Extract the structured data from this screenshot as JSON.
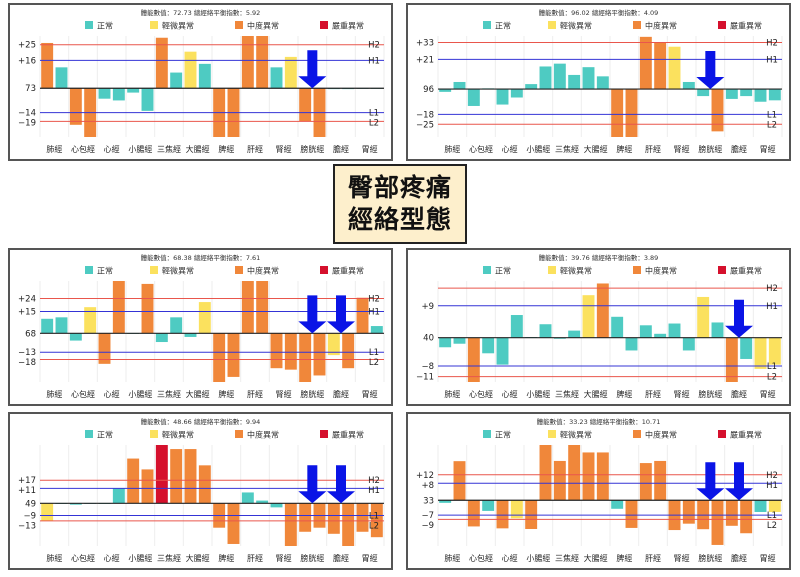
{
  "title": {
    "line1": "臀部疼痛",
    "line2": "經絡型態"
  },
  "legend": [
    {
      "label": "正常",
      "color": "#4ecbc2"
    },
    {
      "label": "輕微異常",
      "color": "#fbe15e"
    },
    {
      "label": "中度異常",
      "color": "#f0873a"
    },
    {
      "label": "嚴重異常",
      "color": "#d5102d"
    }
  ],
  "line_colors": {
    "H2": "#e9564c",
    "H1": "#3434d6",
    "L1": "#3434d6",
    "L2": "#e9564c",
    "baseline": "#222222",
    "arrow": "#0a14e6"
  },
  "meridians": [
    "肺經",
    "心包經",
    "心經",
    "小腸經",
    "三焦經",
    "大腸經",
    "脾經",
    "肝經",
    "腎經",
    "膀胱經",
    "膽經",
    "胃經"
  ],
  "chart_data": [
    {
      "type": "bar",
      "header": "體能數值：72.73 總經絡平衡指數：5.92",
      "baseline_label": "73",
      "lines": {
        "H2": {
          "value": 25,
          "tick": "+25"
        },
        "H1": {
          "value": 16,
          "tick": "+16"
        },
        "L1": {
          "value": -14,
          "tick": "−14"
        },
        "L2": {
          "value": -19,
          "tick": "−19"
        }
      },
      "ylim": [
        -28,
        30
      ],
      "arrows": [
        9
      ],
      "values": [
        [
          26,
          2
        ],
        [
          12,
          0
        ],
        [
          -21,
          2
        ],
        [
          -28,
          2
        ],
        [
          -6,
          0
        ],
        [
          -7,
          0
        ],
        [
          -2.5,
          0
        ],
        [
          -13,
          0
        ],
        [
          29,
          2
        ],
        [
          9,
          0
        ],
        [
          21,
          1
        ],
        [
          14,
          0
        ],
        [
          -28,
          2
        ],
        [
          -28,
          2
        ],
        [
          30,
          2
        ],
        [
          30,
          2
        ],
        [
          12,
          0
        ],
        [
          18,
          1
        ],
        [
          -19,
          2
        ],
        [
          -28,
          2
        ],
        [
          -0.5,
          0
        ],
        [
          -0.5,
          0
        ],
        [
          0,
          0
        ],
        [
          0,
          0
        ]
      ]
    },
    {
      "type": "bar",
      "header": "體能數值：96.02 總經絡平衡指數：4.09",
      "baseline_label": "96",
      "lines": {
        "H2": {
          "value": 33,
          "tick": "+33"
        },
        "H1": {
          "value": 21,
          "tick": "+21"
        },
        "L1": {
          "value": -18,
          "tick": "−18"
        },
        "L2": {
          "value": -25,
          "tick": "−25"
        }
      },
      "ylim": [
        -34,
        37.6
      ],
      "arrows": [
        9
      ],
      "values": [
        [
          -2,
          0
        ],
        [
          5,
          0
        ],
        [
          -12,
          0
        ],
        [
          0.5,
          0
        ],
        [
          -11,
          0
        ],
        [
          -6,
          0
        ],
        [
          3.5,
          0
        ],
        [
          16,
          0
        ],
        [
          18,
          0
        ],
        [
          10,
          0
        ],
        [
          15.5,
          0
        ],
        [
          9,
          0
        ],
        [
          -34,
          2
        ],
        [
          -34,
          2
        ],
        [
          37,
          2
        ],
        [
          33,
          2
        ],
        [
          30,
          1
        ],
        [
          5,
          0
        ],
        [
          -5,
          0
        ],
        [
          -30,
          2
        ],
        [
          -7,
          0
        ],
        [
          -5,
          0
        ],
        [
          -9,
          0
        ],
        [
          -8,
          0
        ]
      ]
    },
    {
      "type": "bar",
      "header": "體能數值：68.38 總經絡平衡指數：7.61",
      "baseline_label": "68",
      "lines": {
        "H2": {
          "value": 24,
          "tick": "+24"
        },
        "H1": {
          "value": 15,
          "tick": "+15"
        },
        "L1": {
          "value": -13,
          "tick": "−13"
        },
        "L2": {
          "value": -18,
          "tick": "−18"
        }
      },
      "ylim": [
        -33.5,
        36
      ],
      "arrows": [
        9,
        10
      ],
      "values": [
        [
          10,
          0
        ],
        [
          11,
          0
        ],
        [
          -5,
          0
        ],
        [
          18,
          1
        ],
        [
          -21,
          2
        ],
        [
          36,
          2
        ],
        [
          0,
          0
        ],
        [
          34,
          2
        ],
        [
          -6,
          0
        ],
        [
          11,
          0
        ],
        [
          -2.5,
          0
        ],
        [
          21.5,
          1
        ],
        [
          -33.5,
          2
        ],
        [
          -30,
          2
        ],
        [
          36,
          2
        ],
        [
          36,
          2
        ],
        [
          -24,
          2
        ],
        [
          -25,
          2
        ],
        [
          -33.5,
          2
        ],
        [
          -29,
          2
        ],
        [
          -15,
          1
        ],
        [
          -24,
          2
        ],
        [
          24.5,
          2
        ],
        [
          5,
          0
        ]
      ]
    },
    {
      "type": "bar",
      "header": "體能數值：39.76 總經絡平衡指數：3.89",
      "baseline_label": "40",
      "lines": {
        "H2": {
          "value": 14,
          "tick": ""
        },
        "H1": {
          "value": 9,
          "tick": "+9"
        },
        "L1": {
          "value": -8,
          "tick": "−8"
        },
        "L2": {
          "value": -11,
          "tick": "−11"
        }
      },
      "ylim": [
        -12.5,
        16
      ],
      "arrows": [
        10
      ],
      "values": [
        [
          -2.7,
          0
        ],
        [
          -1.7,
          0
        ],
        [
          -12.5,
          2
        ],
        [
          -4.4,
          0
        ],
        [
          -7.6,
          0
        ],
        [
          6.4,
          0
        ],
        [
          0.2,
          0
        ],
        [
          3.8,
          0
        ],
        [
          -0.3,
          0
        ],
        [
          2,
          0
        ],
        [
          12,
          1
        ],
        [
          15.3,
          2
        ],
        [
          5.9,
          0
        ],
        [
          -3.6,
          0
        ],
        [
          3.5,
          0
        ],
        [
          1.1,
          0
        ],
        [
          4,
          0
        ],
        [
          -3.6,
          0
        ],
        [
          11.5,
          1
        ],
        [
          4.3,
          0
        ],
        [
          -12.5,
          2
        ],
        [
          -6,
          0
        ],
        [
          -8.8,
          1
        ],
        [
          -7.6,
          1
        ]
      ]
    },
    {
      "type": "bar",
      "header": "體能數值：48.66 總經絡平衡指數：9.94",
      "baseline_label": "49",
      "lines": {
        "H2": {
          "value": 17,
          "tick": "+17"
        },
        "H1": {
          "value": 11,
          "tick": "+11"
        },
        "L1": {
          "value": -9,
          "tick": "−9"
        },
        "L2": {
          "value": -13,
          "tick": "−13"
        }
      },
      "ylim": [
        -31.5,
        43
      ],
      "arrows": [
        9,
        10
      ],
      "values": [
        [
          -13,
          1
        ],
        [
          -0.5,
          0
        ],
        [
          -1,
          0
        ],
        [
          0,
          0
        ],
        [
          -0.5,
          0
        ],
        [
          11,
          0
        ],
        [
          33,
          2
        ],
        [
          25,
          2
        ],
        [
          43,
          3
        ],
        [
          40,
          2
        ],
        [
          40,
          2
        ],
        [
          28,
          2
        ],
        [
          -18,
          2
        ],
        [
          -30,
          2
        ],
        [
          8,
          0
        ],
        [
          2,
          0
        ],
        [
          -3,
          0
        ],
        [
          -31.5,
          2
        ],
        [
          -21,
          2
        ],
        [
          -18,
          2
        ],
        [
          -22.5,
          2
        ],
        [
          -31.5,
          2
        ],
        [
          -21,
          2
        ],
        [
          -25,
          2
        ]
      ]
    },
    {
      "type": "bar",
      "header": "體能數值：33.23 總經絡平衡指數：10.71",
      "baseline_label": "33",
      "lines": {
        "H2": {
          "value": 12,
          "tick": "+12"
        },
        "H1": {
          "value": 8,
          "tick": "+8"
        },
        "L1": {
          "value": -7,
          "tick": "−7"
        },
        "L2": {
          "value": -9,
          "tick": "−9"
        }
      },
      "ylim": [
        -21.5,
        26
      ],
      "arrows": [
        9,
        10
      ],
      "values": [
        [
          -1.2,
          0
        ],
        [
          18.4,
          2
        ],
        [
          -12.3,
          2
        ],
        [
          -5,
          0
        ],
        [
          -13.2,
          2
        ],
        [
          -8.5,
          1
        ],
        [
          -13.5,
          2
        ],
        [
          26,
          2
        ],
        [
          18.5,
          2
        ],
        [
          26,
          2
        ],
        [
          22.5,
          2
        ],
        [
          22.5,
          2
        ],
        [
          -4,
          0
        ],
        [
          -13,
          2
        ],
        [
          17.5,
          2
        ],
        [
          18.5,
          2
        ],
        [
          -14,
          2
        ],
        [
          -11,
          2
        ],
        [
          -13.6,
          2
        ],
        [
          -21,
          2
        ],
        [
          -12,
          2
        ],
        [
          -15.5,
          2
        ],
        [
          -5.5,
          0
        ],
        [
          -5.5,
          1
        ]
      ]
    }
  ]
}
